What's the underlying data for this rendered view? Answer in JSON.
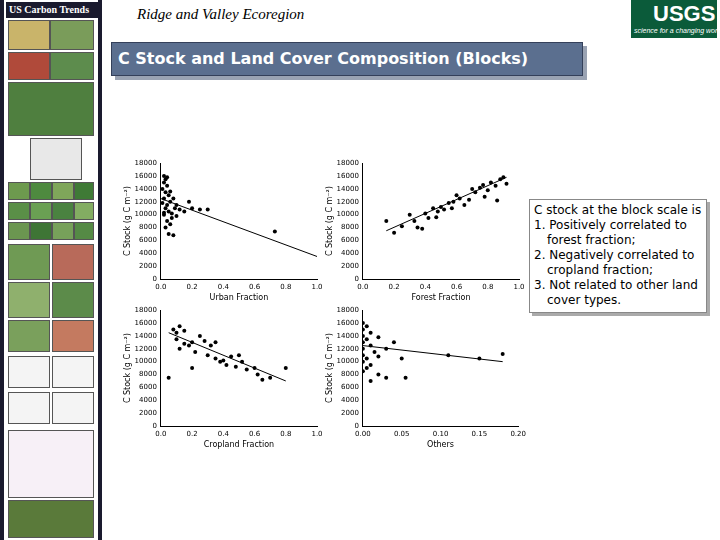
{
  "header": {
    "brand": "US Carbon Trends",
    "region": "Ridge and Valley Ecoregion",
    "logo": "USGS",
    "logo_tagline": "science for a changing world",
    "title": "C Stock and Land Cover Composition (Blocks)"
  },
  "notes": {
    "intro": "C stock at the block scale is",
    "items": [
      "1. Positively correlated to forest fraction;",
      "2. Negatively correlated to cropland fraction;",
      "3. Not related to other land cover types."
    ]
  },
  "chart_data": [
    {
      "type": "scatter",
      "x_label": "Urban Fraction",
      "y_label": "C Stock (g C m⁻²)",
      "xlim": [
        0,
        1
      ],
      "xticks": [
        {
          "value": 0,
          "label": "0.0"
        },
        0.2,
        0.4,
        0.6,
        0.8,
        {
          "value": 1,
          "label": "1.0"
        }
      ],
      "ylim": [
        0,
        18000
      ],
      "yticks": [
        0,
        2000,
        4000,
        6000,
        8000,
        10000,
        12000,
        14000,
        16000,
        18000
      ],
      "grid": false,
      "series": [
        {
          "type": "scatter",
          "color": "#000000",
          "marker": "circle",
          "x": [
            0.02,
            0.03,
            0.02,
            0.04,
            0.01,
            0.03,
            0.05,
            0.02,
            0.06,
            0.04,
            0.03,
            0.08,
            0.05,
            0.02,
            0.07,
            0.04,
            0.06,
            0.03,
            0.05,
            0.08,
            0.1,
            0.12,
            0.15,
            0.18,
            0.2,
            0.25,
            0.3,
            0.1,
            0.02,
            0.01,
            0.06,
            0.09,
            0.73,
            0.04,
            0.07
          ],
          "values": [
            16000,
            15500,
            15000,
            14500,
            14000,
            13500,
            13000,
            12500,
            12000,
            11500,
            11000,
            12500,
            10500,
            10000,
            9500,
            9000,
            8500,
            8000,
            7000,
            6800,
            11500,
            10800,
            10500,
            12000,
            11000,
            10800,
            10800,
            9800,
            10300,
            11800,
            13600,
            11000,
            7400,
            15800,
            10200
          ]
        },
        {
          "type": "line",
          "color": "#000000",
          "line_style": "solid",
          "x": [
            0,
            1
          ],
          "values": [
            12500,
            3500
          ]
        }
      ]
    },
    {
      "type": "scatter",
      "x_label": "Forest Fraction",
      "y_label": "C Stock (g C m⁻²)",
      "xlim": [
        0,
        1
      ],
      "xticks": [
        {
          "value": 0,
          "label": "0.0"
        },
        0.2,
        0.4,
        0.6,
        0.8,
        {
          "value": 1,
          "label": "1.0"
        }
      ],
      "ylim": [
        0,
        18000
      ],
      "yticks": [
        0,
        2000,
        4000,
        6000,
        8000,
        10000,
        12000,
        14000,
        16000,
        18000
      ],
      "grid": false,
      "series": [
        {
          "type": "scatter",
          "color": "#000000",
          "marker": "circle",
          "x": [
            0.15,
            0.25,
            0.3,
            0.33,
            0.35,
            0.4,
            0.42,
            0.45,
            0.48,
            0.5,
            0.38,
            0.55,
            0.58,
            0.6,
            0.62,
            0.65,
            0.7,
            0.72,
            0.75,
            0.78,
            0.8,
            0.82,
            0.85,
            0.88,
            0.9,
            0.92,
            0.86,
            0.47,
            0.52,
            0.68,
            0.2,
            0.57,
            0.77
          ],
          "values": [
            9000,
            8200,
            10000,
            9000,
            8000,
            10200,
            9500,
            11000,
            10500,
            11200,
            7800,
            11800,
            12000,
            13000,
            12500,
            11500,
            14000,
            13500,
            14200,
            12800,
            13800,
            15000,
            14500,
            15500,
            15800,
            14800,
            12200,
            9600,
            10800,
            12300,
            7200,
            11000,
            14600
          ]
        },
        {
          "type": "line",
          "color": "#000000",
          "line_style": "solid",
          "x": [
            0.15,
            0.92
          ],
          "values": [
            7500,
            15800
          ]
        }
      ]
    },
    {
      "type": "scatter",
      "x_label": "Cropland Fraction",
      "y_label": "C Stock (g C m⁻²)",
      "xlim": [
        0,
        1
      ],
      "xticks": [
        {
          "value": 0,
          "label": "0.0"
        },
        0.2,
        0.4,
        0.6,
        0.8,
        {
          "value": 1,
          "label": "1.0"
        }
      ],
      "ylim": [
        0,
        18000
      ],
      "yticks": [
        0,
        2000,
        4000,
        6000,
        8000,
        10000,
        12000,
        14000,
        16000,
        18000
      ],
      "grid": false,
      "series": [
        {
          "type": "scatter",
          "color": "#000000",
          "marker": "circle",
          "x": [
            0.05,
            0.08,
            0.1,
            0.12,
            0.1,
            0.15,
            0.12,
            0.18,
            0.2,
            0.22,
            0.25,
            0.28,
            0.3,
            0.32,
            0.35,
            0.38,
            0.4,
            0.42,
            0.45,
            0.48,
            0.5,
            0.52,
            0.55,
            0.6,
            0.62,
            0.65,
            0.7,
            0.8,
            0.2,
            0.15,
            0.35
          ],
          "values": [
            7500,
            15000,
            14500,
            15500,
            13500,
            14800,
            12000,
            12500,
            13000,
            11500,
            14000,
            13200,
            11000,
            12500,
            10500,
            10000,
            10200,
            9500,
            10800,
            9200,
            11000,
            10000,
            8800,
            9000,
            8000,
            7200,
            7500,
            9000,
            9000,
            12800,
            13000
          ]
        },
        {
          "type": "line",
          "color": "#000000",
          "line_style": "solid",
          "x": [
            0.05,
            0.8
          ],
          "values": [
            14500,
            7000
          ]
        }
      ]
    },
    {
      "type": "scatter",
      "x_label": "Others",
      "y_label": "C Stock (g C m⁻²)",
      "xlim": [
        0,
        0.2
      ],
      "xticks": [
        {
          "value": 0,
          "label": "0.00"
        },
        {
          "value": 0.05,
          "label": "0.05"
        },
        {
          "value": 0.1,
          "label": "0.10"
        },
        {
          "value": 0.15,
          "label": "0.15"
        },
        {
          "value": 0.2,
          "label": "0.20"
        }
      ],
      "ylim": [
        0,
        18000
      ],
      "yticks": [
        0,
        2000,
        4000,
        6000,
        8000,
        10000,
        12000,
        14000,
        16000,
        18000
      ],
      "grid": false,
      "series": [
        {
          "type": "scatter",
          "color": "#000000",
          "marker": "circle",
          "x": [
            0,
            0.005,
            0,
            0.01,
            0,
            0.005,
            0.02,
            0,
            0.01,
            0,
            0.015,
            0,
            0.005,
            0.02,
            0,
            0.01,
            0.005,
            0,
            0.02,
            0.03,
            0.05,
            0.055,
            0.04,
            0.03,
            0.11,
            0.15,
            0.18,
            0.01
          ],
          "values": [
            16000,
            15500,
            15000,
            14500,
            14000,
            13500,
            13800,
            13000,
            12500,
            12000,
            11500,
            11000,
            10500,
            10800,
            10000,
            9500,
            9000,
            8500,
            8000,
            7500,
            10500,
            7500,
            13000,
            12000,
            11000,
            10500,
            11200,
            7000
          ]
        },
        {
          "type": "line",
          "color": "#000000",
          "line_style": "solid",
          "x": [
            0,
            0.18
          ],
          "values": [
            12500,
            10000
          ]
        }
      ]
    }
  ]
}
